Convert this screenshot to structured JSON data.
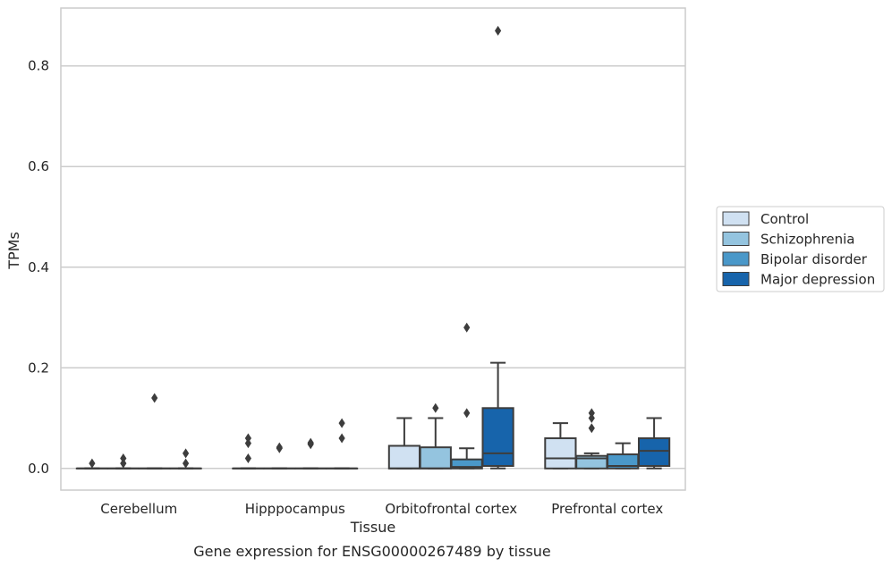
{
  "chart_data": {
    "type": "box",
    "caption": "Gene expression for ENSG00000267489 by tissue",
    "xlabel": "Tissue",
    "ylabel": "TPMs",
    "ylim": [
      -0.043,
      0.915
    ],
    "yticks": [
      "0.0",
      "0.2",
      "0.4",
      "0.6",
      "0.8"
    ],
    "ytick_values": [
      0.0,
      0.2,
      0.4,
      0.6,
      0.8
    ],
    "grid": "horizontal",
    "legend_position": "right",
    "categories": [
      "Cerebellum",
      "Hipppocampus",
      "Orbitofrontal cortex",
      "Prefrontal cortex"
    ],
    "series": [
      {
        "name": "Control",
        "color": "#d0e1f2"
      },
      {
        "name": "Schizophrenia",
        "color": "#94c4df"
      },
      {
        "name": "Bipolar disorder",
        "color": "#4a98c9"
      },
      {
        "name": "Major depression",
        "color": "#1764ab"
      }
    ],
    "boxes": [
      [
        {
          "whisker_low": 0,
          "q1": 0,
          "median": 0,
          "q3": 0,
          "whisker_high": 0,
          "outliers": [
            0.01
          ]
        },
        {
          "whisker_low": 0,
          "q1": 0,
          "median": 0,
          "q3": 0,
          "whisker_high": 0,
          "outliers": [
            0.01,
            0.02
          ]
        },
        {
          "whisker_low": 0,
          "q1": 0,
          "median": 0,
          "q3": 0,
          "whisker_high": 0,
          "outliers": [
            0.14
          ]
        },
        {
          "whisker_low": 0,
          "q1": 0,
          "median": 0,
          "q3": 0,
          "whisker_high": 0,
          "outliers": [
            0.01,
            0.03
          ]
        }
      ],
      [
        {
          "whisker_low": 0,
          "q1": 0,
          "median": 0,
          "q3": 0,
          "whisker_high": 0,
          "outliers": [
            0.02,
            0.05,
            0.06
          ]
        },
        {
          "whisker_low": 0,
          "q1": 0,
          "median": 0,
          "q3": 0,
          "whisker_high": 0,
          "outliers": [
            0.04,
            0.042
          ]
        },
        {
          "whisker_low": 0,
          "q1": 0,
          "median": 0,
          "q3": 0,
          "whisker_high": 0,
          "outliers": [
            0.048,
            0.051
          ]
        },
        {
          "whisker_low": 0,
          "q1": 0,
          "median": 0,
          "q3": 0,
          "whisker_high": 0,
          "outliers": [
            0.06,
            0.09
          ]
        }
      ],
      [
        {
          "whisker_low": 0,
          "q1": 0,
          "median": 0,
          "q3": 0.045,
          "whisker_high": 0.1,
          "outliers": []
        },
        {
          "whisker_low": 0,
          "q1": 0,
          "median": 0,
          "q3": 0.042,
          "whisker_high": 0.1,
          "outliers": [
            0.12
          ]
        },
        {
          "whisker_low": 0,
          "q1": 0,
          "median": 0.003,
          "q3": 0.018,
          "whisker_high": 0.04,
          "outliers": [
            0.11,
            0.28
          ]
        },
        {
          "whisker_low": 0,
          "q1": 0.005,
          "median": 0.03,
          "q3": 0.12,
          "whisker_high": 0.21,
          "outliers": [
            0.87
          ]
        }
      ],
      [
        {
          "whisker_low": 0,
          "q1": 0,
          "median": 0.02,
          "q3": 0.06,
          "whisker_high": 0.09,
          "outliers": []
        },
        {
          "whisker_low": 0,
          "q1": 0,
          "median": 0.02,
          "q3": 0.025,
          "whisker_high": 0.03,
          "outliers": [
            0.08,
            0.1,
            0.11
          ]
        },
        {
          "whisker_low": 0,
          "q1": 0,
          "median": 0.005,
          "q3": 0.028,
          "whisker_high": 0.05,
          "outliers": []
        },
        {
          "whisker_low": 0,
          "q1": 0.005,
          "median": 0.035,
          "q3": 0.06,
          "whisker_high": 0.1,
          "outliers": []
        }
      ]
    ]
  }
}
